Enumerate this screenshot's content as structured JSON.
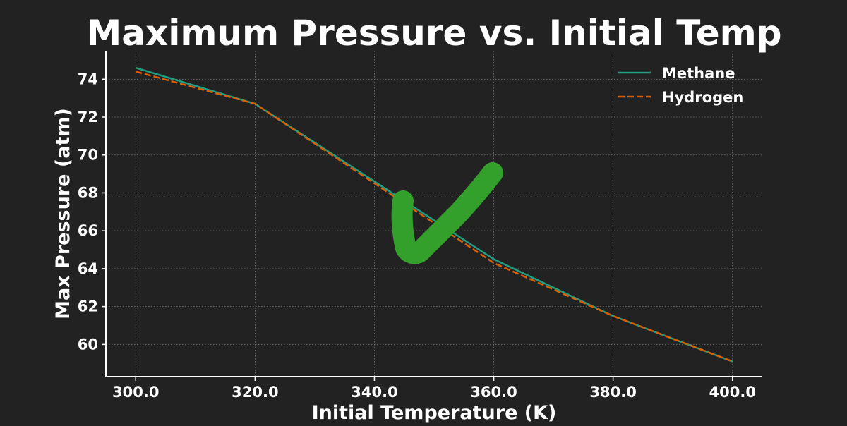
{
  "chart_data": {
    "type": "line",
    "title": "Maximum Pressure vs. Initial Temp",
    "xlabel": "Initial Temperature (K)",
    "ylabel": "Max Pressure (atm)",
    "xlim": [
      295,
      405
    ],
    "ylim": [
      58.3,
      75.5
    ],
    "x": [
      300.0,
      320.0,
      340.0,
      360.0,
      380.0,
      400.0
    ],
    "x_ticks": [
      "300.0",
      "320.0",
      "340.0",
      "360.0",
      "380.0",
      "400.0"
    ],
    "y_ticks": [
      60,
      62,
      64,
      66,
      68,
      70,
      72,
      74
    ],
    "grid": true,
    "legend_position": "top-right",
    "series": [
      {
        "name": "Methane",
        "values": [
          74.6,
          72.7,
          68.6,
          64.5,
          61.5,
          59.1
        ],
        "color": "#1f9e82",
        "linestyle": "solid"
      },
      {
        "name": "Hydrogen",
        "values": [
          74.4,
          72.7,
          68.5,
          64.3,
          61.5,
          59.1
        ],
        "color": "#d95f02",
        "linestyle": "dashed"
      }
    ],
    "annotation": {
      "type": "checkmark",
      "color": "#33a02c"
    }
  }
}
